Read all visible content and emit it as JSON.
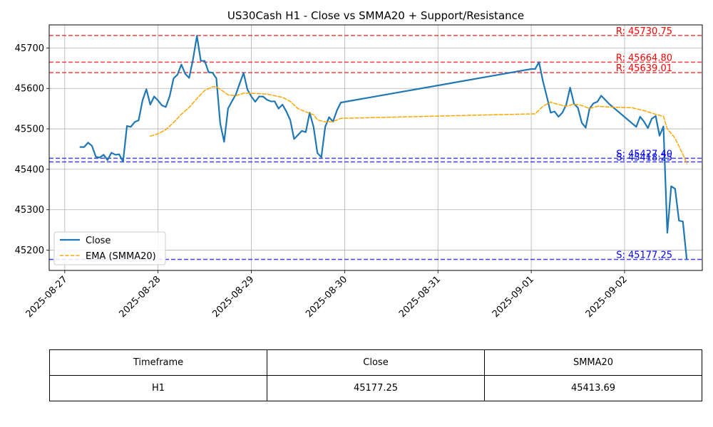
{
  "chart_data": {
    "type": "line",
    "title": "US30Cash H1 - Close vs SMMA20 + Support/Resistance",
    "xlabel": "",
    "ylabel": "",
    "x_ticks": [
      "2025-08-27",
      "2025-08-28",
      "2025-08-29",
      "2025-08-30",
      "2025-08-31",
      "2025-09-01",
      "2025-09-02"
    ],
    "x_range": [
      "2025-08-26T20:00",
      "2025-09-02T20:00"
    ],
    "ylim": [
      45150,
      45757
    ],
    "y_ticks": [
      45200,
      45300,
      45400,
      45500,
      45600,
      45700
    ],
    "grid": true,
    "legend_position": "lower-left",
    "colors": {
      "close": "#1f77b4",
      "ema": "#ffa500",
      "resistance": "#ff0000",
      "support": "#0000ff"
    },
    "series": [
      {
        "name": "Close",
        "style": "solid",
        "points": [
          [
            "2025-08-27T04:00",
            45455
          ],
          [
            "2025-08-27T05:00",
            45455
          ],
          [
            "2025-08-27T06:00",
            45466
          ],
          [
            "2025-08-27T07:00",
            45458
          ],
          [
            "2025-08-27T08:00",
            45431
          ],
          [
            "2025-08-27T09:00",
            45429
          ],
          [
            "2025-08-27T10:00",
            45436
          ],
          [
            "2025-08-27T11:00",
            45423
          ],
          [
            "2025-08-27T12:00",
            45441
          ],
          [
            "2025-08-27T13:00",
            45436
          ],
          [
            "2025-08-27T14:00",
            45437
          ],
          [
            "2025-08-27T15:00",
            45419
          ],
          [
            "2025-08-27T16:00",
            45507
          ],
          [
            "2025-08-27T17:00",
            45505
          ],
          [
            "2025-08-27T18:00",
            45517
          ],
          [
            "2025-08-27T19:00",
            45521
          ],
          [
            "2025-08-27T20:00",
            45570
          ],
          [
            "2025-08-27T21:00",
            45598
          ],
          [
            "2025-08-27T22:00",
            45560
          ],
          [
            "2025-08-27T23:00",
            45580
          ],
          [
            "2025-08-28T00:00",
            45570
          ],
          [
            "2025-08-28T01:00",
            45558
          ],
          [
            "2025-08-28T02:00",
            45554
          ],
          [
            "2025-08-28T03:00",
            45581
          ],
          [
            "2025-08-28T04:00",
            45625
          ],
          [
            "2025-08-28T05:00",
            45634
          ],
          [
            "2025-08-28T06:00",
            45659
          ],
          [
            "2025-08-28T07:00",
            45636
          ],
          [
            "2025-08-28T08:00",
            45626
          ],
          [
            "2025-08-28T09:00",
            45672
          ],
          [
            "2025-08-28T10:00",
            45730
          ],
          [
            "2025-08-28T11:00",
            45668
          ],
          [
            "2025-08-28T12:00",
            45668
          ],
          [
            "2025-08-28T13:00",
            45640
          ],
          [
            "2025-08-28T14:00",
            45639
          ],
          [
            "2025-08-28T15:00",
            45625
          ],
          [
            "2025-08-28T16:00",
            45513
          ],
          [
            "2025-08-28T17:00",
            45468
          ],
          [
            "2025-08-28T18:00",
            45550
          ],
          [
            "2025-08-28T19:00",
            45568
          ],
          [
            "2025-08-28T20:00",
            45585
          ],
          [
            "2025-08-28T21:00",
            45612
          ],
          [
            "2025-08-28T22:00",
            45638
          ],
          [
            "2025-08-28T23:00",
            45597
          ],
          [
            "2025-08-29T00:00",
            45580
          ],
          [
            "2025-08-29T01:00",
            45567
          ],
          [
            "2025-08-29T02:00",
            45580
          ],
          [
            "2025-08-29T03:00",
            45580
          ],
          [
            "2025-08-29T04:00",
            45572
          ],
          [
            "2025-08-29T05:00",
            45568
          ],
          [
            "2025-08-29T06:00",
            45568
          ],
          [
            "2025-08-29T07:00",
            45550
          ],
          [
            "2025-08-29T08:00",
            45560
          ],
          [
            "2025-08-29T09:00",
            45543
          ],
          [
            "2025-08-29T10:00",
            45522
          ],
          [
            "2025-08-29T11:00",
            45475
          ],
          [
            "2025-08-29T12:00",
            45485
          ],
          [
            "2025-08-29T13:00",
            45495
          ],
          [
            "2025-08-29T14:00",
            45492
          ],
          [
            "2025-08-29T15:00",
            45540
          ],
          [
            "2025-08-29T16:00",
            45505
          ],
          [
            "2025-08-29T17:00",
            45440
          ],
          [
            "2025-08-29T18:00",
            45430
          ],
          [
            "2025-08-29T19:00",
            45505
          ],
          [
            "2025-08-29T20:00",
            45529
          ],
          [
            "2025-08-29T21:00",
            45518
          ],
          [
            "2025-08-29T22:00",
            45545
          ],
          [
            "2025-08-29T23:00",
            45565
          ],
          [
            "2025-09-01T00:00",
            45648
          ],
          [
            "2025-09-01T01:00",
            45648
          ],
          [
            "2025-09-01T02:00",
            45665
          ],
          [
            "2025-09-01T03:00",
            45618
          ],
          [
            "2025-09-01T04:00",
            45580
          ],
          [
            "2025-09-01T05:00",
            45540
          ],
          [
            "2025-09-01T06:00",
            45543
          ],
          [
            "2025-09-01T07:00",
            45530
          ],
          [
            "2025-09-01T08:00",
            45540
          ],
          [
            "2025-09-01T09:00",
            45560
          ],
          [
            "2025-09-01T10:00",
            45602
          ],
          [
            "2025-09-01T11:00",
            45562
          ],
          [
            "2025-09-01T12:00",
            45552
          ],
          [
            "2025-09-01T13:00",
            45515
          ],
          [
            "2025-09-01T14:00",
            45503
          ],
          [
            "2025-09-01T15:00",
            45550
          ],
          [
            "2025-09-01T16:00",
            45563
          ],
          [
            "2025-09-01T17:00",
            45567
          ],
          [
            "2025-09-01T18:00",
            45582
          ],
          [
            "2025-09-01T19:00",
            45572
          ],
          [
            "2025-09-01T20:00",
            45562
          ],
          [
            "2025-09-02T03:00",
            45505
          ],
          [
            "2025-09-02T04:00",
            45530
          ],
          [
            "2025-09-02T05:00",
            45518
          ],
          [
            "2025-09-02T06:00",
            45502
          ],
          [
            "2025-09-02T07:00",
            45525
          ],
          [
            "2025-09-02T08:00",
            45532
          ],
          [
            "2025-09-02T09:00",
            45483
          ],
          [
            "2025-09-02T10:00",
            45506
          ],
          [
            "2025-09-02T11:00",
            45243
          ],
          [
            "2025-09-02T12:00",
            45358
          ],
          [
            "2025-09-02T13:00",
            45352
          ],
          [
            "2025-09-02T14:00",
            45273
          ],
          [
            "2025-09-02T15:00",
            45271
          ],
          [
            "2025-09-02T16:00",
            45177.25
          ]
        ]
      },
      {
        "name": "EMA (SMMA20)",
        "style": "dashed",
        "points": [
          [
            "2025-08-27T22:00",
            45482
          ],
          [
            "2025-08-28T00:00",
            45488
          ],
          [
            "2025-08-28T02:00",
            45498
          ],
          [
            "2025-08-28T04:00",
            45516
          ],
          [
            "2025-08-28T06:00",
            45536
          ],
          [
            "2025-08-28T08:00",
            45553
          ],
          [
            "2025-08-28T10:00",
            45575
          ],
          [
            "2025-08-28T12:00",
            45595
          ],
          [
            "2025-08-28T14:00",
            45604
          ],
          [
            "2025-08-28T15:00",
            45604
          ],
          [
            "2025-08-28T16:00",
            45598
          ],
          [
            "2025-08-28T18:00",
            45584
          ],
          [
            "2025-08-28T20:00",
            45582
          ],
          [
            "2025-08-28T22:00",
            45588
          ],
          [
            "2025-08-29T00:00",
            45588
          ],
          [
            "2025-08-29T04:00",
            45586
          ],
          [
            "2025-08-29T08:00",
            45578
          ],
          [
            "2025-08-29T10:00",
            45568
          ],
          [
            "2025-08-29T12:00",
            45550
          ],
          [
            "2025-08-29T14:00",
            45542
          ],
          [
            "2025-08-29T16:00",
            45535
          ],
          [
            "2025-08-29T17:00",
            45522
          ],
          [
            "2025-08-29T19:00",
            45517
          ],
          [
            "2025-08-29T21:00",
            45518
          ],
          [
            "2025-08-29T23:00",
            45526
          ],
          [
            "2025-09-01T00:00",
            45537
          ],
          [
            "2025-09-01T01:00",
            45537
          ],
          [
            "2025-09-01T03:00",
            45556
          ],
          [
            "2025-09-01T05:00",
            45566
          ],
          [
            "2025-09-01T07:00",
            45560
          ],
          [
            "2025-09-01T09:00",
            45556
          ],
          [
            "2025-09-01T11:00",
            45561
          ],
          [
            "2025-09-01T13:00",
            45558
          ],
          [
            "2025-09-01T15:00",
            45550
          ],
          [
            "2025-09-01T17:00",
            45556
          ],
          [
            "2025-09-01T20:00",
            45554
          ],
          [
            "2025-09-02T02:00",
            45552
          ],
          [
            "2025-09-02T05:00",
            45545
          ],
          [
            "2025-09-02T08:00",
            45536
          ],
          [
            "2025-09-02T10:00",
            45531
          ],
          [
            "2025-09-02T11:00",
            45500
          ],
          [
            "2025-09-02T13:00",
            45477
          ],
          [
            "2025-09-02T15:00",
            45437
          ],
          [
            "2025-09-02T16:00",
            45414
          ]
        ]
      }
    ],
    "resistance_levels": [
      {
        "value": 45730.75,
        "label": "R: 45730.75"
      },
      {
        "value": 45664.8,
        "label": "R: 45664.80"
      },
      {
        "value": 45639.01,
        "label": "R: 45639.01"
      }
    ],
    "support_levels": [
      {
        "value": 45427.4,
        "label": "S: 45427.40"
      },
      {
        "value": 45418.25,
        "label": "S: 45418.25"
      },
      {
        "value": 45177.25,
        "label": "S: 45177.25"
      }
    ]
  },
  "table": {
    "headers": [
      "Timeframe",
      "Close",
      "SMMA20"
    ],
    "rows": [
      [
        "H1",
        "45177.25",
        "45413.69"
      ]
    ]
  }
}
